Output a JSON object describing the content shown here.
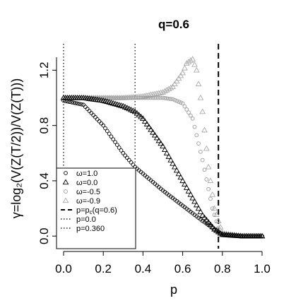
{
  "chart_data": {
    "type": "scatter",
    "title": "q=0.6",
    "xlabel": "p",
    "ylabel": "γ=log₂(V(Z(T/2))/V(Z(T)))",
    "xlim": [
      0.0,
      1.0
    ],
    "ylim": [
      -0.05,
      1.35
    ],
    "xticks": [
      0.0,
      0.2,
      0.4,
      0.6,
      0.8,
      1.0
    ],
    "xtick_labels": [
      "0.0",
      "0.2",
      "0.4",
      "0.6",
      "0.8",
      "1.0"
    ],
    "yticks": [
      0.0,
      0.4,
      0.8,
      1.2
    ],
    "ytick_labels": [
      "0.0",
      "0.4",
      "0.8",
      "1.2"
    ],
    "grid": false,
    "legend_position": "bottom-left",
    "series": [
      {
        "name": "ω=1.0",
        "marker": "circle",
        "color": "#000000",
        "x": [
          0.0,
          0.1,
          0.2,
          0.3,
          0.36,
          0.5,
          0.6,
          0.7,
          0.76,
          0.8,
          0.9,
          1.0
        ],
        "y": [
          0.98,
          0.95,
          0.8,
          0.6,
          0.5,
          0.33,
          0.22,
          0.11,
          0.05,
          0.01,
          0.0,
          0.0
        ]
      },
      {
        "name": "ω=0.0",
        "marker": "triangle",
        "color": "#000000",
        "x": [
          0.0,
          0.1,
          0.2,
          0.3,
          0.36,
          0.4,
          0.5,
          0.6,
          0.7,
          0.76,
          0.8,
          0.9,
          1.0
        ],
        "y": [
          1.0,
          1.0,
          0.98,
          0.94,
          0.9,
          0.85,
          0.65,
          0.4,
          0.15,
          0.05,
          0.01,
          0.0,
          0.0
        ]
      },
      {
        "name": "ω=-0.5",
        "marker": "circle",
        "color": "#999999",
        "x": [
          0.0,
          0.1,
          0.2,
          0.3,
          0.4,
          0.5,
          0.55,
          0.6,
          0.65,
          0.7,
          0.75,
          0.78,
          0.8,
          0.9,
          1.0
        ],
        "y": [
          1.0,
          1.0,
          1.0,
          1.0,
          1.0,
          1.0,
          0.99,
          0.96,
          0.85,
          0.55,
          0.2,
          0.06,
          0.02,
          0.0,
          0.0
        ]
      },
      {
        "name": "ω=-0.9",
        "marker": "triangle",
        "color": "#aaaaaa",
        "x": [
          0.0,
          0.1,
          0.2,
          0.3,
          0.4,
          0.5,
          0.55,
          0.6,
          0.62,
          0.65,
          0.67,
          0.7,
          0.73,
          0.76,
          0.8,
          0.9,
          1.0
        ],
        "y": [
          1.0,
          1.0,
          1.0,
          1.0,
          1.01,
          1.04,
          1.08,
          1.18,
          1.25,
          1.28,
          1.2,
          0.9,
          0.5,
          0.2,
          0.02,
          0.0,
          0.0
        ]
      }
    ],
    "reference_lines": [
      {
        "name": "p=p_c(q=0.6)",
        "x": 0.78,
        "style": "dashed"
      },
      {
        "name": "p=0.0",
        "x": 0.0,
        "style": "dotted"
      },
      {
        "name": "p=0.360",
        "x": 0.36,
        "style": "dotted"
      }
    ],
    "legend_labels": [
      "ω=1.0",
      "ω=0.0",
      "ω=-0.5",
      "ω=-0.9",
      "p=p",
      "(q=0.6)",
      "p=0.0",
      "p=0.360"
    ],
    "legend_pc_subscript": "c"
  }
}
